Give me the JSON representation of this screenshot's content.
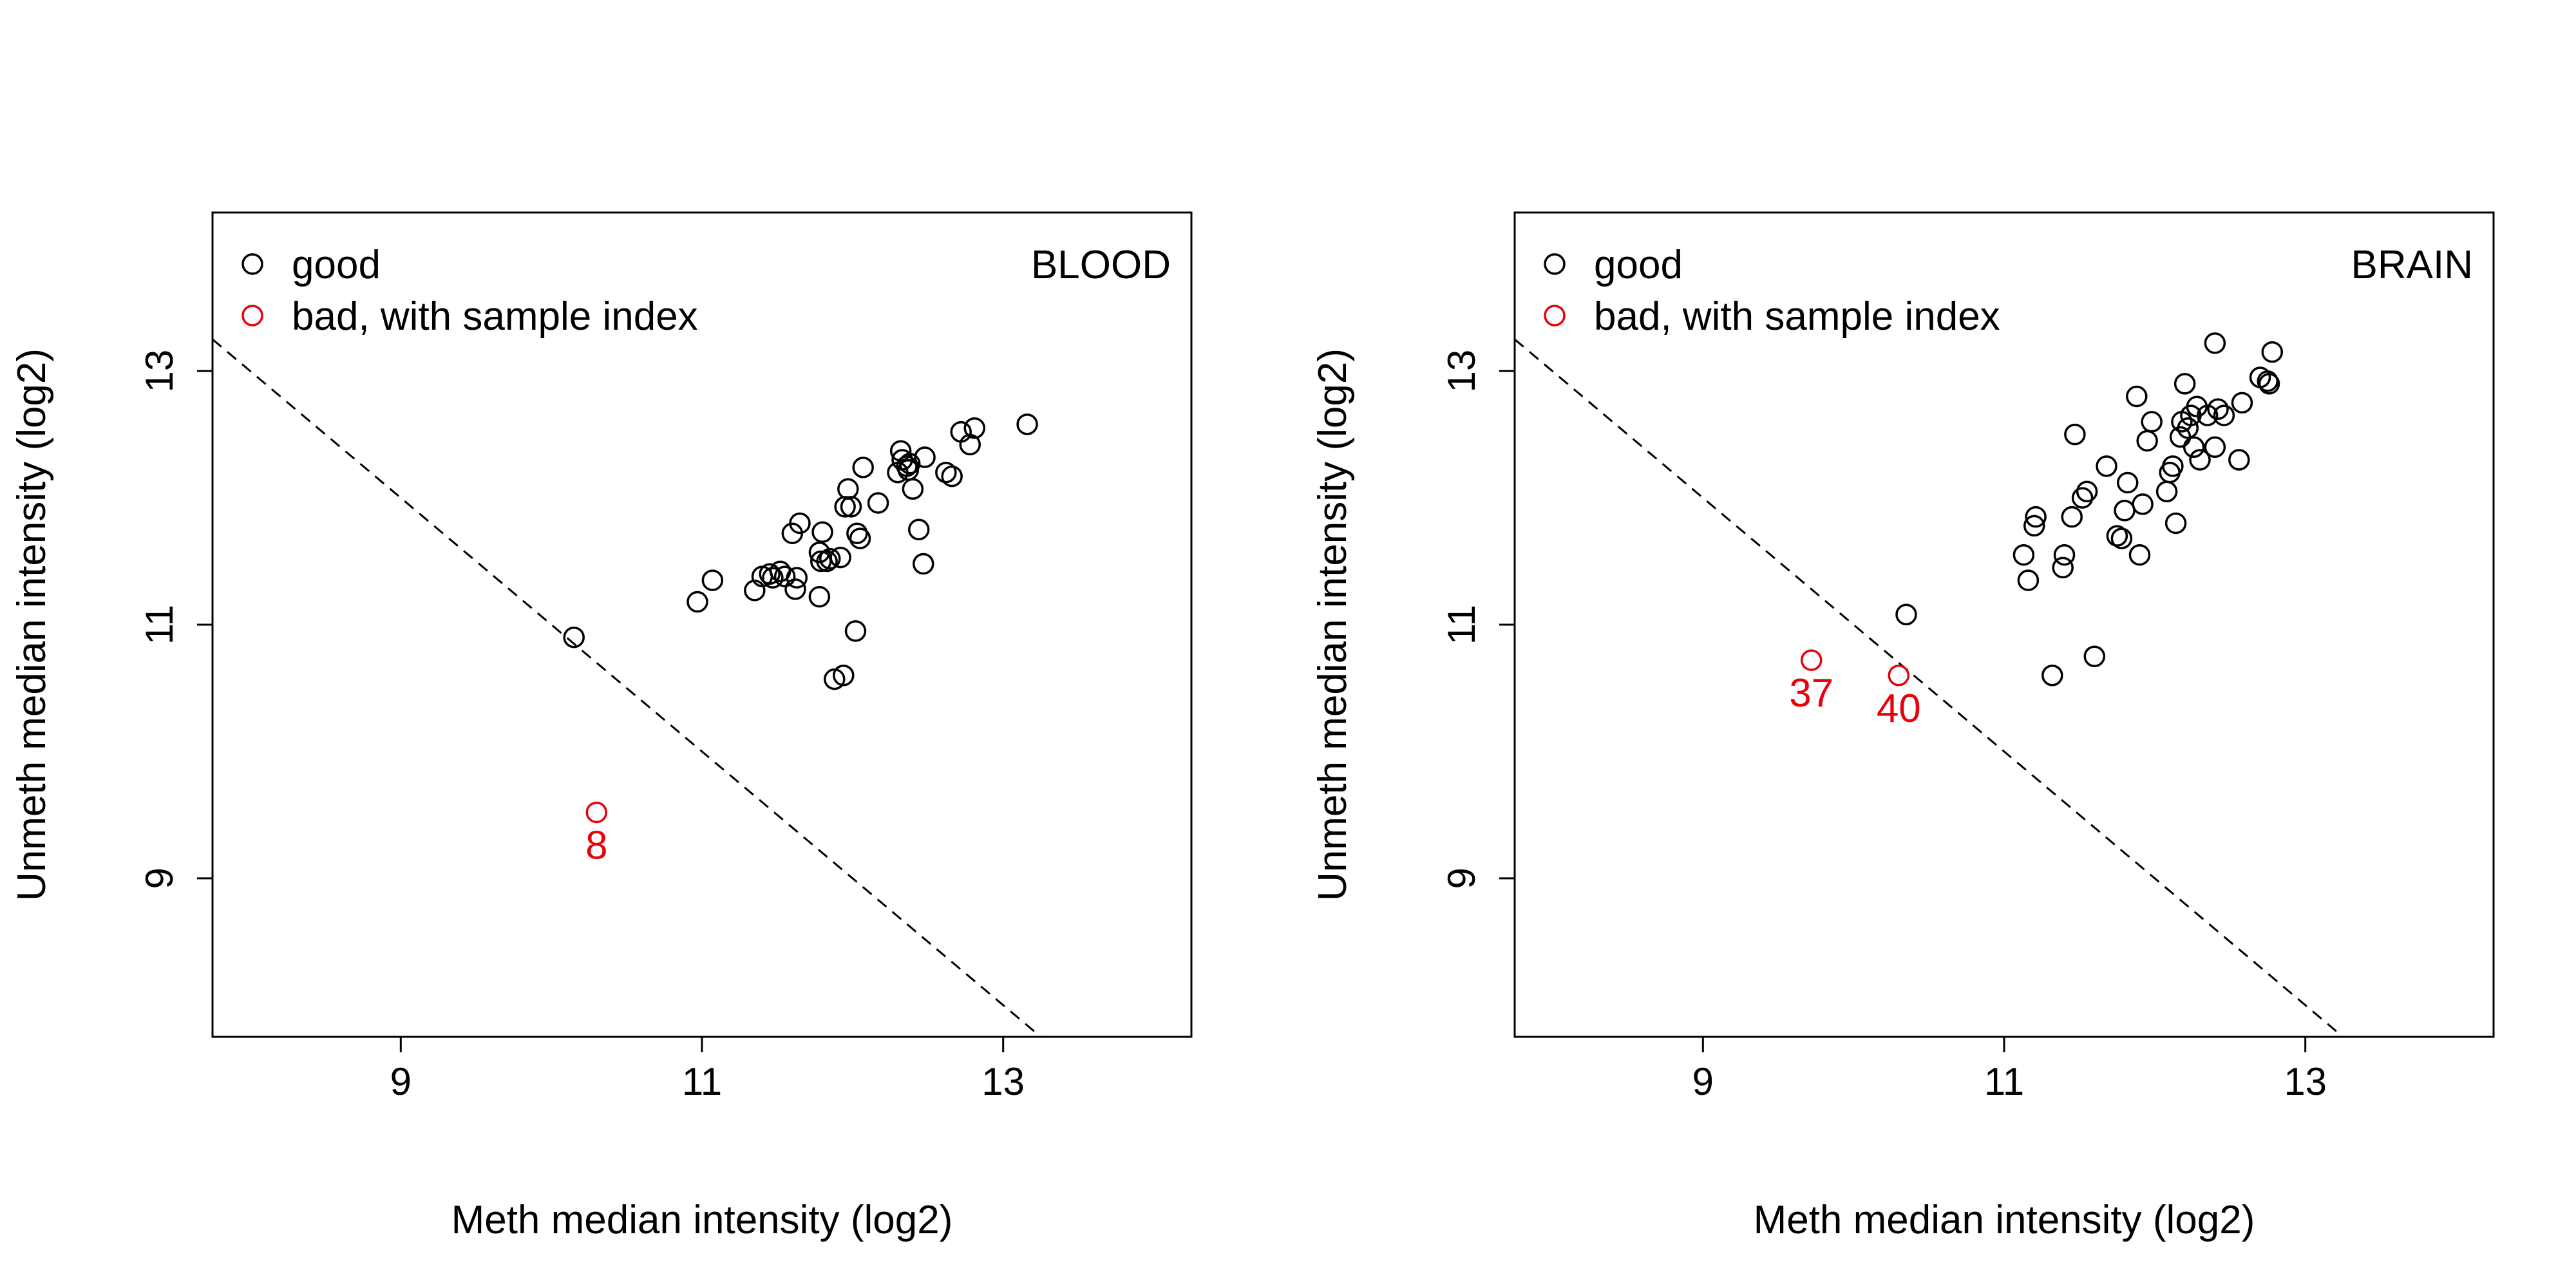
{
  "colors": {
    "good": "#000000",
    "bad": "#e8000b",
    "frame": "#000000"
  },
  "chart_data": [
    {
      "type": "scatter",
      "panel_label": "BLOOD",
      "xlabel": "Meth median intensity (log2)",
      "ylabel": "Unmeth median intensity (log2)",
      "xlim": [
        7.75,
        14.25
      ],
      "ylim": [
        7.75,
        14.25
      ],
      "xticks": [
        9,
        11,
        13
      ],
      "yticks": [
        9,
        11,
        13
      ],
      "legend": {
        "position": "top-left",
        "entries": [
          "good",
          "bad, with sample index"
        ]
      },
      "cutoff_line": {
        "style": "dashed",
        "intercept": 21,
        "slope": -1
      },
      "good": {
        "x": [
          10.15,
          10.97,
          11.07,
          11.35,
          11.4,
          11.45,
          11.47,
          11.52,
          11.55,
          11.6,
          11.62,
          11.63,
          11.65,
          11.78,
          11.78,
          11.79,
          11.8,
          11.83,
          11.85,
          11.92,
          11.95,
          11.97,
          11.99,
          12.02,
          12.03,
          12.05,
          12.07,
          12.17,
          12.3,
          12.32,
          12.33,
          12.36,
          12.37,
          12.38,
          12.4,
          12.44,
          12.47,
          12.48,
          12.62,
          12.66,
          12.72,
          12.78,
          12.81,
          13.16,
          11.88,
          11.94
        ],
        "y": [
          10.9,
          11.18,
          11.35,
          11.27,
          11.38,
          11.4,
          11.37,
          11.42,
          11.38,
          11.72,
          11.28,
          11.37,
          11.8,
          11.22,
          11.57,
          11.5,
          11.73,
          11.5,
          11.52,
          11.53,
          11.93,
          12.07,
          11.93,
          10.95,
          11.72,
          11.68,
          12.24,
          11.96,
          12.2,
          12.37,
          12.3,
          12.25,
          12.22,
          12.27,
          12.07,
          11.75,
          11.48,
          12.32,
          12.2,
          12.17,
          12.52,
          12.42,
          12.55,
          12.58,
          10.57,
          10.6
        ]
      },
      "bad": [
        {
          "x": 10.3,
          "y": 9.52,
          "label": "8"
        }
      ]
    },
    {
      "type": "scatter",
      "panel_label": "BRAIN",
      "xlabel": "Meth median intensity (log2)",
      "ylabel": "Unmeth median intensity (log2)",
      "xlim": [
        7.75,
        14.25
      ],
      "ylim": [
        7.75,
        14.25
      ],
      "xticks": [
        9,
        11,
        13
      ],
      "yticks": [
        9,
        11,
        13
      ],
      "legend": {
        "position": "top-left",
        "entries": [
          "good",
          "bad, with sample index"
        ]
      },
      "cutoff_line": {
        "style": "dashed",
        "intercept": 21,
        "slope": -1
      },
      "good": {
        "x": [
          10.35,
          11.13,
          11.16,
          11.2,
          11.21,
          11.32,
          11.39,
          11.4,
          11.45,
          11.47,
          11.52,
          11.55,
          11.6,
          11.68,
          11.75,
          11.78,
          11.8,
          11.82,
          11.88,
          11.9,
          11.92,
          11.95,
          11.98,
          12.08,
          12.1,
          12.12,
          12.14,
          12.17,
          12.18,
          12.2,
          12.22,
          12.24,
          12.26,
          12.28,
          12.3,
          12.35,
          12.4,
          12.42,
          12.46,
          12.56,
          12.58,
          12.7,
          12.75,
          12.76,
          12.78,
          12.4
        ],
        "y": [
          11.08,
          11.55,
          11.35,
          11.78,
          11.85,
          10.6,
          11.45,
          11.55,
          11.85,
          12.5,
          12.0,
          12.05,
          10.75,
          12.25,
          11.7,
          11.68,
          11.9,
          12.12,
          12.8,
          11.55,
          11.95,
          12.45,
          12.6,
          12.05,
          12.2,
          12.25,
          11.8,
          12.48,
          12.6,
          12.9,
          12.55,
          12.65,
          12.4,
          12.72,
          12.3,
          12.65,
          12.4,
          12.7,
          12.65,
          12.3,
          12.75,
          12.95,
          12.92,
          12.9,
          13.15,
          13.22
        ]
      },
      "bad": [
        {
          "x": 9.72,
          "y": 10.72,
          "label": "37"
        },
        {
          "x": 10.3,
          "y": 10.6,
          "label": "40"
        }
      ]
    }
  ]
}
